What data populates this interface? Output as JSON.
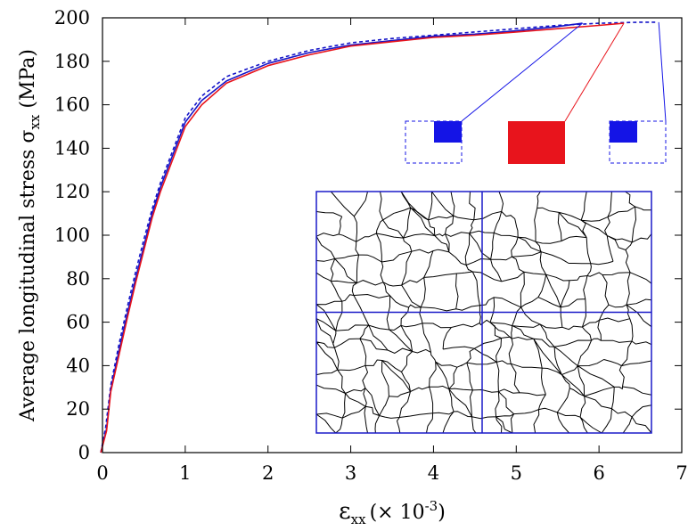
{
  "chart_data": {
    "type": "line",
    "xlabel": {
      "symbol": "ε",
      "sub": "xx",
      "suffix": "(× 10",
      "sup": "-3",
      "close": ")"
    },
    "ylabel": {
      "prefix": "Average longitudinal stress σ",
      "sub": "xx",
      "suffix": " (MPa)"
    },
    "xlim": [
      0,
      7
    ],
    "ylim": [
      0,
      200
    ],
    "xticks": [
      0,
      1,
      2,
      3,
      4,
      5,
      6,
      7
    ],
    "yticks": [
      0,
      20,
      40,
      60,
      80,
      100,
      120,
      140,
      160,
      180,
      200
    ],
    "grid": false,
    "series": [
      {
        "style": "solid",
        "color": "#e8141c",
        "x": [
          -0.02,
          0.05,
          0.1,
          0.2,
          0.3,
          0.4,
          0.5,
          0.6,
          0.7,
          0.8,
          0.9,
          1.0,
          1.2,
          1.5,
          2.0,
          2.5,
          3.0,
          3.5,
          4.0,
          4.5,
          5.0,
          5.5,
          6.0,
          6.3
        ],
        "y": [
          0,
          10,
          28,
          45,
          62,
          78,
          93,
          108,
          120,
          130,
          140,
          150,
          160,
          170,
          178,
          183,
          187,
          189,
          191,
          192,
          193.5,
          195,
          196.5,
          197.5
        ]
      },
      {
        "style": "solid",
        "color": "#1414c8",
        "x": [
          -0.02,
          0.05,
          0.1,
          0.2,
          0.3,
          0.4,
          0.5,
          0.6,
          0.7,
          0.8,
          0.9,
          1.0,
          1.2,
          1.5,
          2.0,
          2.5,
          3.0,
          3.5,
          4.0,
          4.5,
          5.0,
          5.5,
          5.8
        ],
        "y": [
          0,
          11,
          29,
          47,
          64,
          80,
          95,
          110,
          122,
          132,
          142,
          152,
          162,
          171,
          179,
          184,
          187.5,
          189.5,
          191.5,
          192.5,
          194,
          196,
          197.5
        ]
      },
      {
        "style": "dashed",
        "color": "#1414c8",
        "x": [
          -0.02,
          0.04,
          0.1,
          0.2,
          0.3,
          0.4,
          0.5,
          0.6,
          0.7,
          0.8,
          0.9,
          1.0,
          1.2,
          1.5,
          2.0,
          2.5,
          3.0,
          3.5,
          4.0,
          4.5,
          5.0,
          5.5,
          6.0,
          6.5,
          6.7
        ],
        "y": [
          0,
          12,
          31,
          50,
          67,
          83,
          98,
          112,
          124,
          134,
          144,
          154,
          164,
          173,
          180,
          185,
          188.5,
          190.5,
          192,
          193.5,
          195,
          196.5,
          197.5,
          198,
          198
        ]
      }
    ],
    "inset": {
      "windows": [
        {
          "color": "#1414e6",
          "line_end": [
            5.8,
            197.5
          ]
        },
        {
          "color": "#e8141c",
          "line_end": [
            6.3,
            197.5
          ]
        },
        {
          "color": "#1414e6",
          "line_end": [
            6.7,
            198
          ]
        }
      ],
      "grains_color": "#000000",
      "frame_color": "#1a1ac8"
    }
  }
}
